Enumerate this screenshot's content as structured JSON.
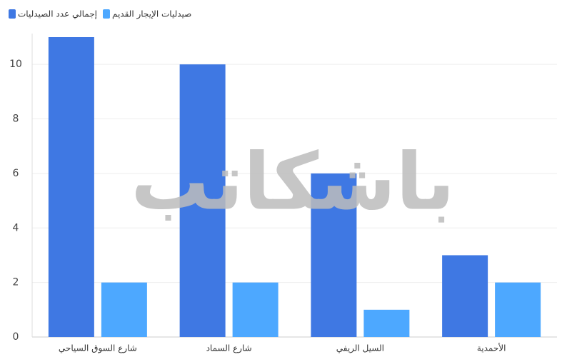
{
  "chart_data": {
    "type": "bar",
    "categories": [
      "شارع السوق السياحي",
      "شارع السماد",
      "السيل الريفي",
      "الأحمدية"
    ],
    "series": [
      {
        "name": "إجمالي عدد الصيدليات",
        "color": "#3f78e3",
        "values": [
          11,
          10,
          6,
          3
        ]
      },
      {
        "name": "صيدليات الإيجار القديم",
        "color": "#4da8ff",
        "values": [
          2,
          2,
          1,
          2
        ]
      }
    ],
    "ylim": [
      0,
      11
    ],
    "yticks": [
      0,
      2,
      4,
      6,
      8,
      10
    ],
    "grid": true,
    "legend": "top-left",
    "watermark": "باشكاتب"
  }
}
